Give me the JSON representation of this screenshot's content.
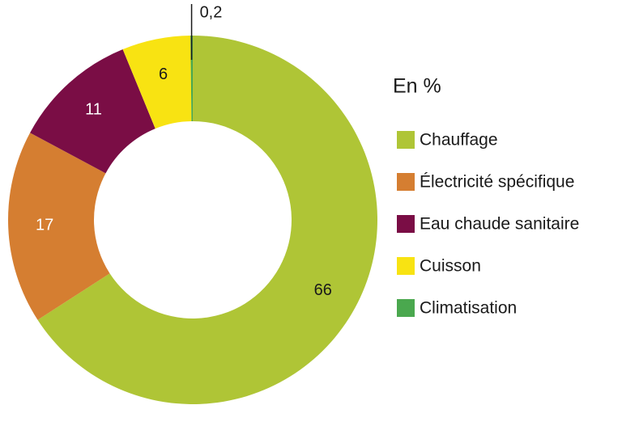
{
  "chart_data": {
    "type": "donut",
    "legend_title": "En %",
    "categories": [
      "Chauffage",
      "Électricité spécifique",
      "Eau chaude sanitaire",
      "Cuisson",
      "Climatisation"
    ],
    "values": [
      66,
      17,
      11,
      6,
      0.2
    ],
    "value_labels": [
      "66",
      "17",
      "11",
      "6",
      "0,2"
    ],
    "colors": [
      "#afc536",
      "#d57e31",
      "#7a0d45",
      "#f8e312",
      "#4aa84e"
    ],
    "legend": "right"
  }
}
